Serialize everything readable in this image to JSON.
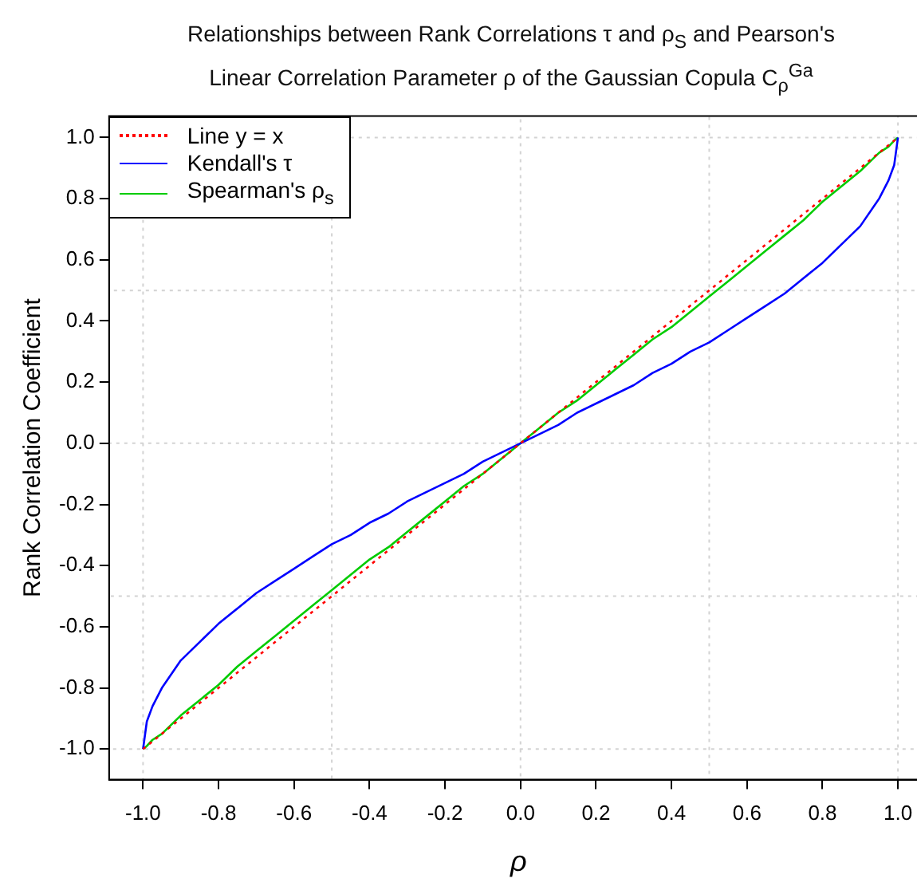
{
  "chart_data": {
    "type": "line",
    "title": "Relationships between Rank Correlations τ and ρ$_{S}$ and Pearson's Linear Correlation Parameter ρ of the Gaussian Copula C$_{ρ}$$^{Ga}$",
    "xlabel": "ρ",
    "ylabel": "Rank Correlation Coefficient",
    "x": [
      -1,
      -0.99,
      -0.975,
      -0.95,
      -0.9,
      -0.85,
      -0.8,
      -0.75,
      -0.7,
      -0.65,
      -0.6,
      -0.55,
      -0.5,
      -0.45,
      -0.4,
      -0.35,
      -0.3,
      -0.25,
      -0.2,
      -0.15,
      -0.1,
      -0.05,
      0,
      0.05,
      0.1,
      0.15,
      0.2,
      0.25,
      0.3,
      0.35,
      0.4,
      0.45,
      0.5,
      0.55,
      0.6,
      0.65,
      0.7,
      0.75,
      0.8,
      0.85,
      0.9,
      0.95,
      0.975,
      0.99,
      1
    ],
    "series": [
      {
        "name": "Line y = x",
        "color": "#ff0000",
        "line_style": "dotted",
        "x": [
          -1,
          1
        ],
        "values": [
          -1,
          1
        ]
      },
      {
        "name": "Kendall's τ",
        "color": "#0000ff",
        "line_style": "solid",
        "values": [
          -1,
          -0.91,
          -0.86,
          -0.8,
          -0.71,
          -0.65,
          -0.59,
          -0.54,
          -0.49,
          -0.45,
          -0.41,
          -0.37,
          -0.33,
          -0.3,
          -0.26,
          -0.23,
          -0.19,
          -0.16,
          -0.13,
          -0.1,
          -0.06,
          -0.03,
          0,
          0.03,
          0.06,
          0.1,
          0.13,
          0.16,
          0.19,
          0.23,
          0.26,
          0.3,
          0.33,
          0.37,
          0.41,
          0.45,
          0.49,
          0.54,
          0.59,
          0.65,
          0.71,
          0.8,
          0.86,
          0.91,
          1
        ]
      },
      {
        "name": "Spearman's ρ$_{s}$",
        "color": "#00cc00",
        "line_style": "solid",
        "values": [
          -1,
          -0.99,
          -0.97,
          -0.95,
          -0.89,
          -0.84,
          -0.79,
          -0.73,
          -0.68,
          -0.63,
          -0.58,
          -0.53,
          -0.48,
          -0.43,
          -0.38,
          -0.34,
          -0.29,
          -0.24,
          -0.19,
          -0.14,
          -0.1,
          -0.05,
          0,
          0.05,
          0.1,
          0.14,
          0.19,
          0.24,
          0.29,
          0.34,
          0.38,
          0.43,
          0.48,
          0.53,
          0.58,
          0.63,
          0.68,
          0.73,
          0.79,
          0.84,
          0.89,
          0.95,
          0.97,
          0.99,
          1
        ]
      }
    ],
    "xlim": [
      -1.09,
      1.08
    ],
    "ylim": [
      -1.1,
      1.07
    ],
    "xticks": [
      {
        "value": -1,
        "label": "-1.0"
      },
      {
        "value": -0.8,
        "label": "-0.8"
      },
      {
        "value": -0.6,
        "label": "-0.6"
      },
      {
        "value": -0.4,
        "label": "-0.4"
      },
      {
        "value": -0.2,
        "label": "-0.2"
      },
      {
        "value": 0,
        "label": "0.0"
      },
      {
        "value": 0.2,
        "label": "0.2"
      },
      {
        "value": 0.4,
        "label": "0.4"
      },
      {
        "value": 0.6,
        "label": "0.6"
      },
      {
        "value": 0.8,
        "label": "0.8"
      },
      {
        "value": 1,
        "label": "1.0"
      }
    ],
    "yticks": [
      {
        "value": -1,
        "label": "-1.0"
      },
      {
        "value": -0.8,
        "label": "-0.8"
      },
      {
        "value": -0.6,
        "label": "-0.6"
      },
      {
        "value": -0.4,
        "label": "-0.4"
      },
      {
        "value": -0.2,
        "label": "-0.2"
      },
      {
        "value": 0,
        "label": "0.0"
      },
      {
        "value": 0.2,
        "label": "0.2"
      },
      {
        "value": 0.4,
        "label": "0.4"
      },
      {
        "value": 0.6,
        "label": "0.6"
      },
      {
        "value": 0.8,
        "label": "0.8"
      },
      {
        "value": 1,
        "label": "1.0"
      }
    ],
    "ref_lines": [
      {
        "axis": "x",
        "value": -1,
        "color": "#d3d3d3",
        "line_style": "dotted"
      },
      {
        "axis": "x",
        "value": -0.5,
        "color": "#d3d3d3",
        "line_style": "dotted"
      },
      {
        "axis": "x",
        "value": 0,
        "color": "#d3d3d3",
        "line_style": "dotted"
      },
      {
        "axis": "x",
        "value": 0.5,
        "color": "#d3d3d3",
        "line_style": "dotted"
      },
      {
        "axis": "x",
        "value": 1,
        "color": "#d3d3d3",
        "line_style": "dotted"
      },
      {
        "axis": "y",
        "value": -1,
        "color": "#d3d3d3",
        "line_style": "dotted"
      },
      {
        "axis": "y",
        "value": -0.5,
        "color": "#d3d3d3",
        "line_style": "dotted"
      },
      {
        "axis": "y",
        "value": 0,
        "color": "#d3d3d3",
        "line_style": "dotted"
      },
      {
        "axis": "y",
        "value": 0.5,
        "color": "#d3d3d3",
        "line_style": "dotted"
      },
      {
        "axis": "y",
        "value": 1,
        "color": "#d3d3d3",
        "line_style": "dotted"
      }
    ],
    "legend": "top left",
    "marker": "none"
  }
}
